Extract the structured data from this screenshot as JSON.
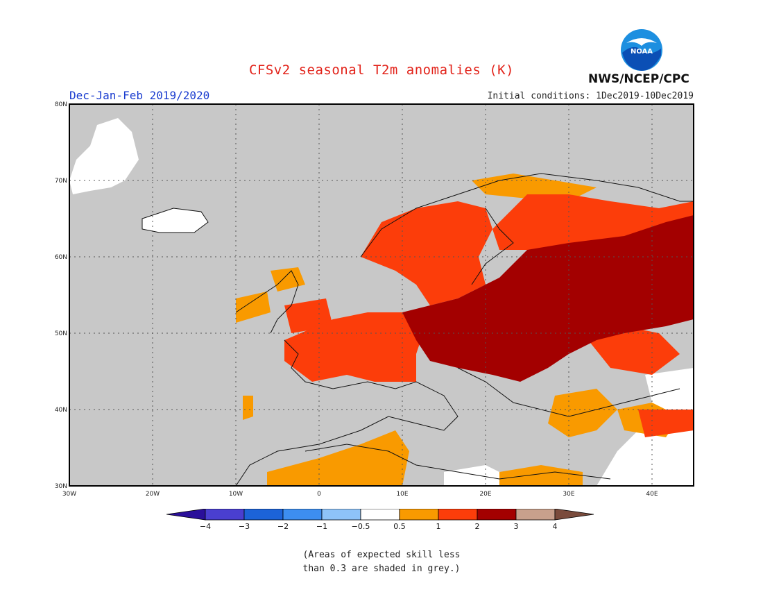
{
  "title": "CFSv2 seasonal T2m anomalies (K)",
  "season": "Dec-Jan-Feb 2019/2020",
  "initial_conditions": "Initial conditions: 1Dec2019-10Dec2019",
  "agency": "NWS/NCEP/CPC",
  "logo_text": "NOAA",
  "map": {
    "lon_range": [
      -30,
      45
    ],
    "lat_range": [
      30,
      80
    ],
    "lat_ticks": [
      "30N",
      "40N",
      "50N",
      "60N",
      "70N",
      "80N"
    ],
    "lon_ticks": [
      "30W",
      "20W",
      "10W",
      "0",
      "10E",
      "20E",
      "30E",
      "40E"
    ],
    "gridlines": true
  },
  "legend": {
    "labels": [
      "−4",
      "−3",
      "−2",
      "−1",
      "−0.5",
      "0.5",
      "1",
      "2",
      "3",
      "4"
    ],
    "colors": [
      "#2a0f9a",
      "#4a3fd0",
      "#1c63d8",
      "#3d8ef0",
      "#8ec3f8",
      "#ffffff",
      "#f99a00",
      "#fc3d0a",
      "#a30000",
      "#c8a08c",
      "#7a4b3c"
    ]
  },
  "colors": {
    "grey_skill": "#c8c8c8",
    "anomaly_0_5_1": "#f99a00",
    "anomaly_1_2": "#fc3d0a",
    "anomaly_2_3": "#a30000",
    "anomaly_neutral": "#ffffff"
  },
  "note_line1": "(Areas of expected skill less",
  "note_line2": "than 0.3 are shaded in grey.)"
}
